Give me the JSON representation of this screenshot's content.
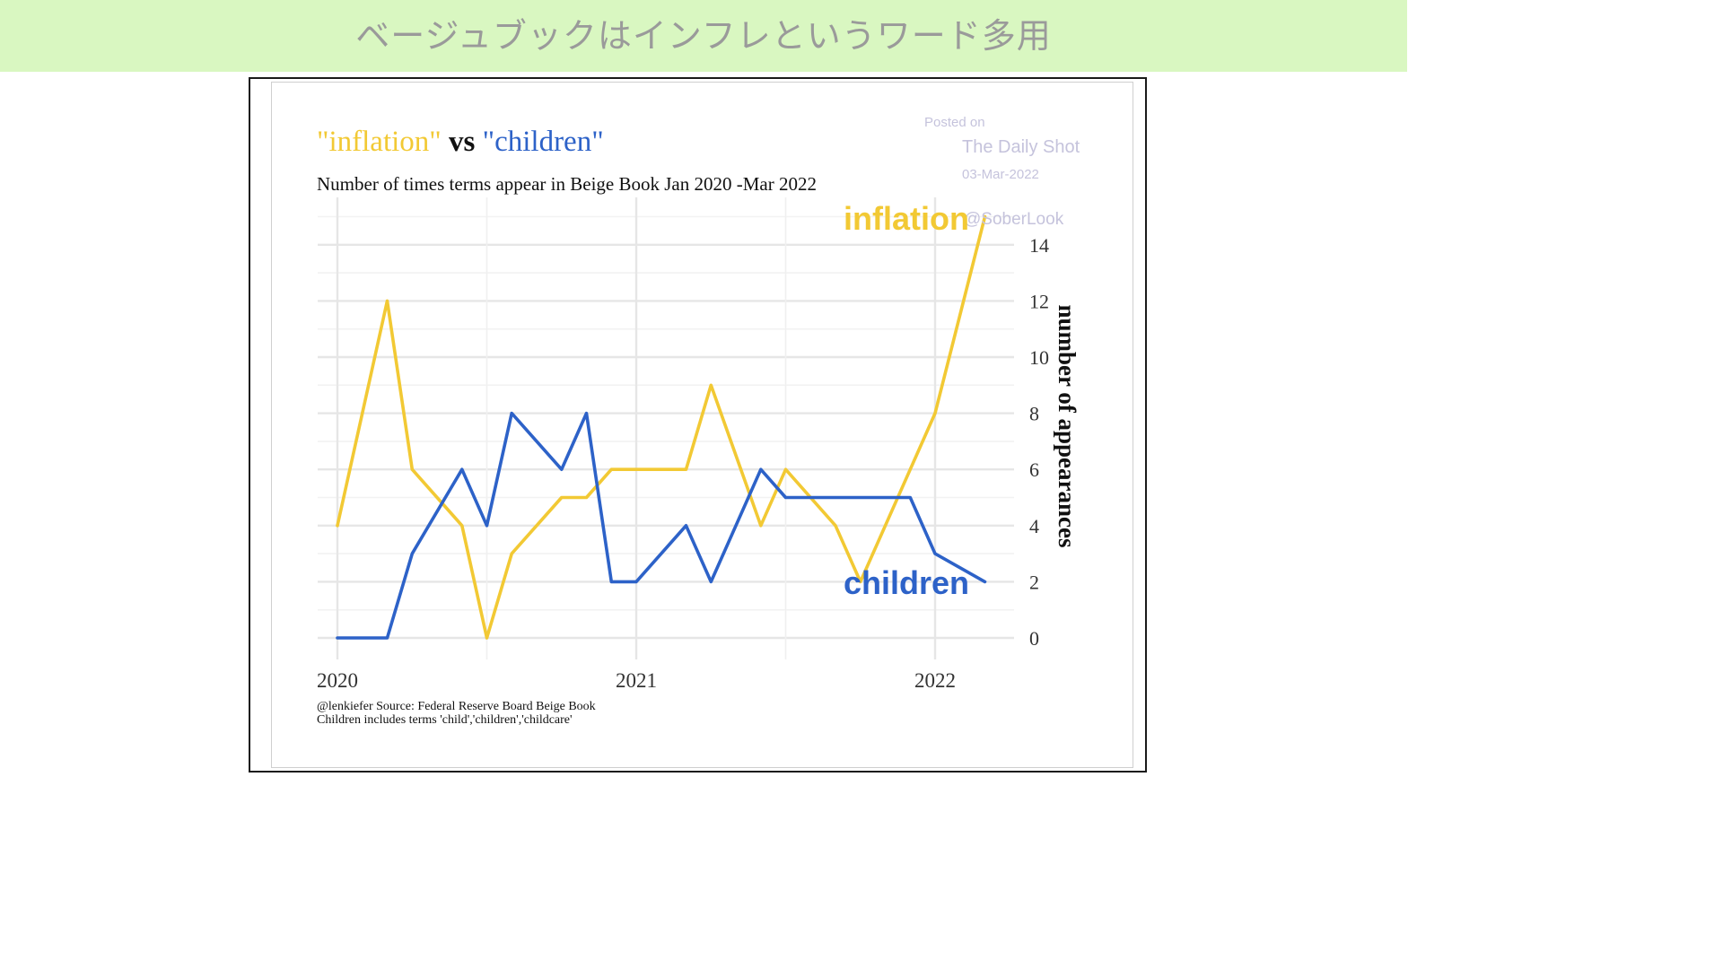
{
  "header": {
    "title": "ベージュブックはインフレというワード多用"
  },
  "colors": {
    "inflation": "#f2c934",
    "children": "#2d62c8",
    "banner": "#d9f7c1",
    "grid": "#ebebeb"
  },
  "chart_data": {
    "type": "line",
    "title_parts": [
      "\"inflation\"",
      " vs ",
      "\"children\""
    ],
    "subtitle": "Number of times terms appear in Beige Book Jan 2020 -Mar 2022",
    "ylabel": "number of appearances",
    "xlabel": "",
    "ylim": [
      0,
      15
    ],
    "yticks": [
      0,
      2,
      4,
      6,
      8,
      10,
      12,
      14
    ],
    "xticks": [
      2020,
      2021,
      2022
    ],
    "x": [
      "2020-01",
      "2020-03",
      "2020-04",
      "2020-06",
      "2020-07",
      "2020-08",
      "2020-10",
      "2020-11",
      "2020-12",
      "2021-01",
      "2021-03",
      "2021-04",
      "2021-06",
      "2021-07",
      "2021-09",
      "2021-10",
      "2021-12",
      "2022-01",
      "2022-03"
    ],
    "series": [
      {
        "name": "inflation",
        "values": [
          4,
          12,
          6,
          4,
          0,
          3,
          5,
          5,
          6,
          6,
          6,
          9,
          4,
          6,
          4,
          2,
          6,
          8,
          15
        ]
      },
      {
        "name": "children",
        "values": [
          0,
          0,
          3,
          6,
          4,
          8,
          6,
          8,
          2,
          2,
          4,
          2,
          6,
          5,
          5,
          5,
          5,
          3,
          2
        ]
      }
    ],
    "source_lines": [
      "@lenkiefer Source: Federal Reserve Board Beige Book",
      "Children includes terms 'child','children','childcare'"
    ],
    "watermark": [
      "Posted on",
      "The Daily Shot",
      "03-Mar-2022",
      "@SoberLook"
    ],
    "grid": true
  }
}
